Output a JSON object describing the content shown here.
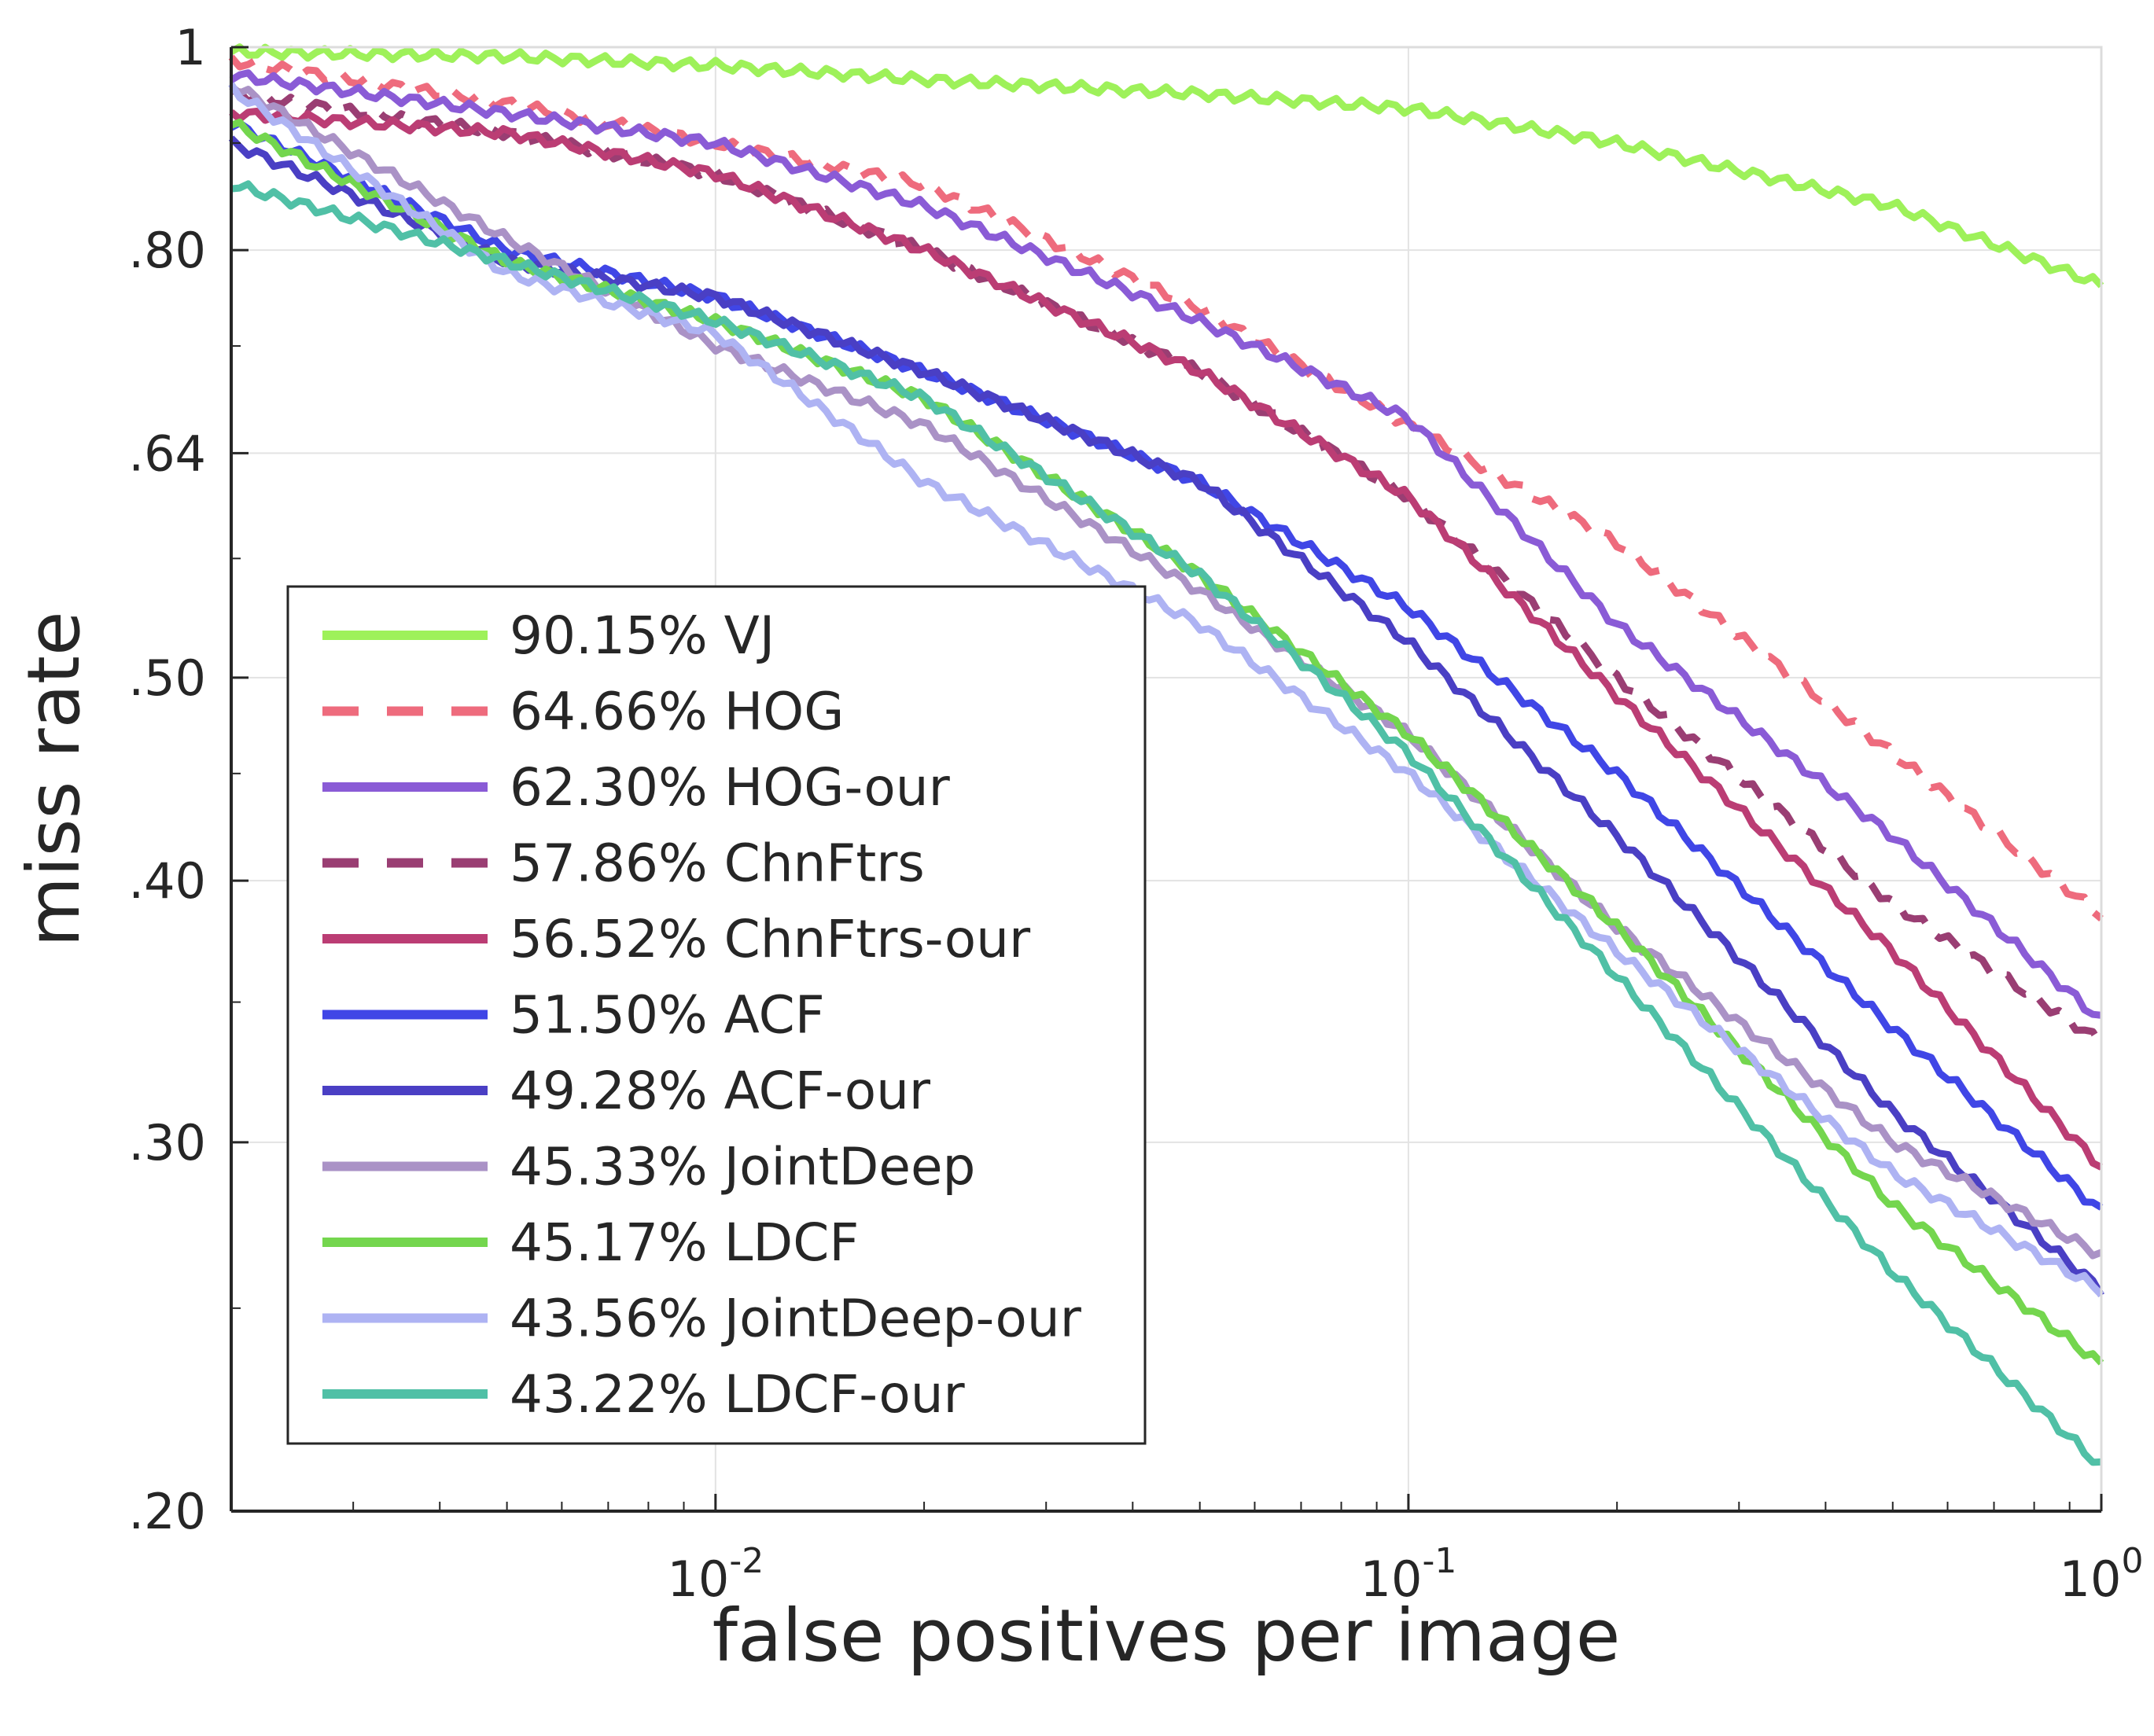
{
  "chart_data": {
    "type": "line",
    "title": "",
    "xlabel": "false positives per image",
    "ylabel": "miss rate",
    "xscale": "log",
    "yscale": "log",
    "xlim": [
      0.002,
      1
    ],
    "ylim": [
      0.2,
      1
    ],
    "grid": true,
    "legend_position": "bottom-left",
    "x_ticks": [
      {
        "value": 0.01,
        "base": "10",
        "exp": "-2"
      },
      {
        "value": 0.1,
        "base": "10",
        "exp": "-1"
      },
      {
        "value": 1,
        "base": "10",
        "exp": "0"
      }
    ],
    "y_ticks": [
      {
        "value": 1,
        "label": "1"
      },
      {
        "value": 0.8,
        "label": ".80"
      },
      {
        "value": 0.64,
        "label": ".64"
      },
      {
        "value": 0.5,
        "label": ".50"
      },
      {
        "value": 0.4,
        "label": ".40"
      },
      {
        "value": 0.3,
        "label": ".30"
      },
      {
        "value": 0.2,
        "label": ".20"
      }
    ],
    "series": [
      {
        "name": "VJ",
        "legend_label": "90.15% VJ",
        "color": "#9ef15a",
        "dashed": false,
        "x": [
          0.002,
          0.005,
          0.01,
          0.02,
          0.05,
          0.1,
          0.2,
          0.5,
          1.0
        ],
        "y": [
          0.995,
          0.99,
          0.98,
          0.965,
          0.95,
          0.935,
          0.9,
          0.84,
          0.77
        ]
      },
      {
        "name": "HOG",
        "legend_label": "64.66% HOG",
        "color": "#ee6b7d",
        "dashed": true,
        "x": [
          0.002,
          0.005,
          0.01,
          0.02,
          0.05,
          0.1,
          0.2,
          0.5,
          1.0
        ],
        "y": [
          0.985,
          0.94,
          0.9,
          0.86,
          0.75,
          0.66,
          0.58,
          0.46,
          0.385
        ]
      },
      {
        "name": "HOG-our",
        "legend_label": "62.30% HOG-our",
        "color": "#8a5bd6",
        "dashed": false,
        "x": [
          0.002,
          0.005,
          0.01,
          0.02,
          0.05,
          0.1,
          0.2,
          0.5,
          1.0
        ],
        "y": [
          0.97,
          0.93,
          0.9,
          0.84,
          0.74,
          0.665,
          0.53,
          0.42,
          0.343
        ]
      },
      {
        "name": "ChnFtrs",
        "legend_label": "57.86% ChnFtrs",
        "color": "#9a3e73",
        "dashed": true,
        "x": [
          0.002,
          0.005,
          0.01,
          0.02,
          0.05,
          0.1,
          0.2,
          0.5,
          1.0
        ],
        "y": [
          0.95,
          0.91,
          0.87,
          0.8,
          0.7,
          0.61,
          0.5,
          0.39,
          0.335
        ]
      },
      {
        "name": "ChnFtrs-our",
        "legend_label": "56.52% ChnFtrs-our",
        "color": "#bb3d74",
        "dashed": false,
        "x": [
          0.002,
          0.005,
          0.01,
          0.02,
          0.05,
          0.1,
          0.2,
          0.5,
          1.0
        ],
        "y": [
          0.93,
          0.91,
          0.87,
          0.8,
          0.7,
          0.61,
          0.49,
          0.37,
          0.292
        ]
      },
      {
        "name": "ACF",
        "legend_label": "51.50% ACF",
        "color": "#4046e6",
        "dashed": false,
        "x": [
          0.002,
          0.005,
          0.01,
          0.02,
          0.05,
          0.1,
          0.2,
          0.5,
          1.0
        ],
        "y": [
          0.92,
          0.8,
          0.76,
          0.7,
          0.62,
          0.54,
          0.45,
          0.34,
          0.278
        ]
      },
      {
        "name": "ACF-our",
        "legend_label": "49.28% ACF-our",
        "color": "#4a3fc4",
        "dashed": false,
        "x": [
          0.002,
          0.005,
          0.01,
          0.02,
          0.05,
          0.1,
          0.2,
          0.5,
          1.0
        ],
        "y": [
          0.9,
          0.79,
          0.76,
          0.7,
          0.62,
          0.52,
          0.42,
          0.31,
          0.255
        ]
      },
      {
        "name": "JointDeep",
        "legend_label": "45.33% JointDeep",
        "color": "#aa92c6",
        "dashed": false,
        "x": [
          0.002,
          0.005,
          0.01,
          0.02,
          0.05,
          0.1,
          0.2,
          0.5,
          1.0
        ],
        "y": [
          0.96,
          0.81,
          0.72,
          0.66,
          0.55,
          0.47,
          0.38,
          0.3,
          0.265
        ]
      },
      {
        "name": "LDCF",
        "legend_label": "45.17% LDCF",
        "color": "#74d64e",
        "dashed": false,
        "x": [
          0.002,
          0.005,
          0.01,
          0.02,
          0.05,
          0.1,
          0.2,
          0.5,
          1.0
        ],
        "y": [
          0.92,
          0.79,
          0.74,
          0.68,
          0.56,
          0.47,
          0.38,
          0.28,
          0.235
        ]
      },
      {
        "name": "JointDeep-our",
        "legend_label": "43.56% JointDeep-our",
        "color": "#aeb3f3",
        "dashed": false,
        "x": [
          0.002,
          0.005,
          0.01,
          0.02,
          0.05,
          0.1,
          0.2,
          0.5,
          1.0
        ],
        "y": [
          0.955,
          0.78,
          0.73,
          0.62,
          0.53,
          0.45,
          0.37,
          0.29,
          0.255
        ]
      },
      {
        "name": "LDCF-our",
        "legend_label": "43.22% LDCF-our",
        "color": "#50c0a6",
        "dashed": false,
        "x": [
          0.002,
          0.005,
          0.01,
          0.02,
          0.05,
          0.1,
          0.2,
          0.5,
          1.0
        ],
        "y": [
          0.86,
          0.79,
          0.74,
          0.68,
          0.56,
          0.46,
          0.36,
          0.26,
          0.21
        ]
      }
    ]
  }
}
